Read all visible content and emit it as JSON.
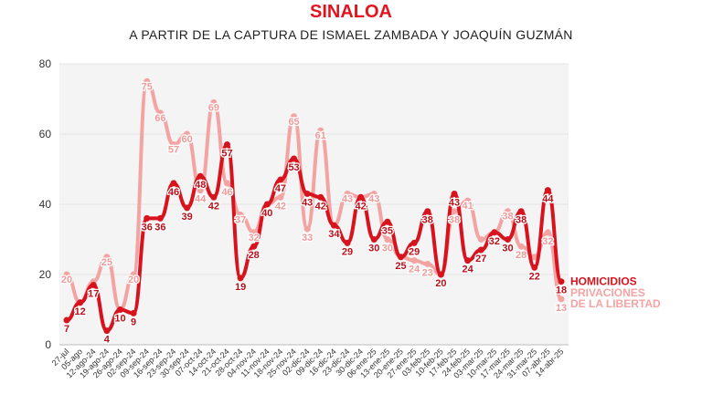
{
  "chart_data": {
    "type": "line",
    "title": "SINALOA",
    "subtitle": "A PARTIR DE LA CAPTURA DE ISMAEL ZAMBADA Y JOAQUÍN GUZMÁN",
    "xlabel": "",
    "ylabel": "",
    "ylim": [
      0,
      80
    ],
    "yticks": [
      0,
      20,
      40,
      60,
      80
    ],
    "grid": true,
    "legend": "right, at line ends",
    "categories": [
      "27-jul",
      "05-ago",
      "12-ago-24",
      "19-ago-24",
      "26-ago-24",
      "02-sep-24",
      "09-sep-24",
      "16-sep-24",
      "23-sep-24",
      "30-sep-24",
      "07-oct-24",
      "14-oct-24",
      "21-oct-24",
      "28-oct-24",
      "04-nov-24",
      "11-nov-24",
      "18-nov-24",
      "25-nov-24",
      "02-dic-24",
      "09-dic-24",
      "16-dic-24",
      "23-dic-24",
      "30-dic-24",
      "06-ene-25",
      "13-ene-25",
      "20-ene-25",
      "27-ene-25",
      "03-feb-25",
      "10-feb-25",
      "17-feb-25",
      "24-feb-25",
      "03-mar-25",
      "10-mar-25",
      "17-mar-25",
      "24-mar-25",
      "31-mar-25",
      "07-abr-25",
      "14-abr-25"
    ],
    "series": [
      {
        "name": "HOMICIDIOS",
        "color": "#d7141e",
        "values": [
          7,
          12,
          17,
          4,
          10,
          9,
          36,
          36,
          46,
          39,
          48,
          42,
          57,
          19,
          28,
          40,
          47,
          53,
          43,
          42,
          34,
          29,
          42,
          30,
          35,
          25,
          29,
          38,
          20,
          43,
          24,
          27,
          32,
          30,
          38,
          22,
          44,
          18
        ]
      },
      {
        "name": "PRIVACIONES DE LA LIBERTAD",
        "color": "#f4a3a3",
        "values": [
          20,
          12,
          18,
          25,
          10,
          20,
          75,
          66,
          57,
          60,
          44,
          69,
          46,
          37,
          32,
          40,
          42,
          65,
          33,
          61,
          34,
          43,
          42,
          43,
          30,
          25,
          24,
          23,
          20,
          38,
          41,
          30,
          32,
          38,
          28,
          25,
          32,
          13
        ]
      }
    ],
    "labeled_privaciones": [
      0,
      3,
      5,
      6,
      7,
      8,
      9,
      10,
      11,
      12,
      13,
      14,
      16,
      17,
      18,
      19,
      21,
      23,
      24,
      26,
      27,
      29,
      30,
      33,
      34,
      36,
      37
    ]
  }
}
